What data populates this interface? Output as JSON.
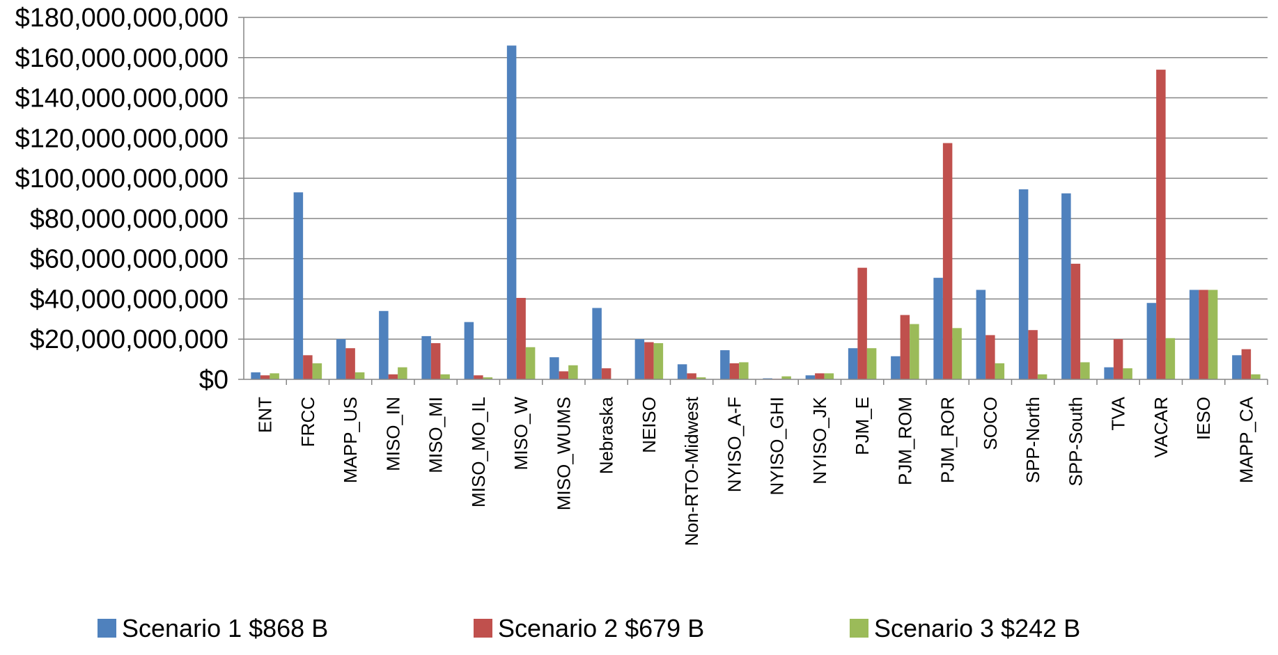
{
  "chart_data": {
    "type": "bar",
    "categories": [
      "ENT",
      "FRCC",
      "MAPP_US",
      "MISO_IN",
      "MISO_MI",
      "MISO_MO_IL",
      "MISO_W",
      "MISO_WUMS",
      "Nebraska",
      "NEISO",
      "Non-RTO-Midwest",
      "NYISO_A-F",
      "NYISO_GHI",
      "NYISO_JK",
      "PJM_E",
      "PJM_ROM",
      "PJM_ROR",
      "SOCO",
      "SPP-North",
      "SPP-South",
      "TVA",
      "VACAR",
      "IESO",
      "MAPP_CA"
    ],
    "series": [
      {
        "name": "Scenario 1 $868 B",
        "color": "#4F81BD",
        "values": [
          3500000000,
          93000000000,
          20000000000,
          34000000000,
          21500000000,
          28500000000,
          166000000000,
          11000000000,
          35500000000,
          20000000000,
          7500000000,
          14500000000,
          500000000,
          2000000000,
          15500000000,
          11500000000,
          50500000000,
          44500000000,
          94500000000,
          92500000000,
          6000000000,
          38000000000,
          44500000000,
          12000000000
        ]
      },
      {
        "name": "Scenario 2 $679 B",
        "color": "#C0504D",
        "values": [
          2000000000,
          12000000000,
          15500000000,
          2500000000,
          18000000000,
          2000000000,
          40500000000,
          4000000000,
          5500000000,
          18500000000,
          3000000000,
          8000000000,
          300000000,
          3000000000,
          55500000000,
          32000000000,
          117500000000,
          22000000000,
          24500000000,
          57500000000,
          20000000000,
          154000000000,
          44500000000,
          15000000000
        ]
      },
      {
        "name": "Scenario 3 $242 B",
        "color": "#9BBB59",
        "values": [
          3000000000,
          8000000000,
          3500000000,
          6000000000,
          2500000000,
          1000000000,
          16000000000,
          7000000000,
          0,
          18000000000,
          1000000000,
          8500000000,
          1500000000,
          3000000000,
          15500000000,
          27500000000,
          25500000000,
          8000000000,
          2500000000,
          8500000000,
          5500000000,
          20500000000,
          44500000000,
          2500000000
        ]
      }
    ],
    "title": "",
    "xlabel": "",
    "ylabel": "",
    "ylim": [
      0,
      180000000000
    ],
    "yticks": [
      {
        "value": 0,
        "label": "$0"
      },
      {
        "value": 20000000000,
        "label": "$20,000,000,000"
      },
      {
        "value": 40000000000,
        "label": "$40,000,000,000"
      },
      {
        "value": 60000000000,
        "label": "$60,000,000,000"
      },
      {
        "value": 80000000000,
        "label": "$80,000,000,000"
      },
      {
        "value": 100000000000,
        "label": "$100,000,000,000"
      },
      {
        "value": 120000000000,
        "label": "$120,000,000,000"
      },
      {
        "value": 140000000000,
        "label": "$140,000,000,000"
      },
      {
        "value": 160000000000,
        "label": "$160,000,000,000"
      },
      {
        "value": 180000000000,
        "label": "$180,000,000,000"
      }
    ],
    "grid": "horizontal",
    "legend_position": "bottom"
  }
}
